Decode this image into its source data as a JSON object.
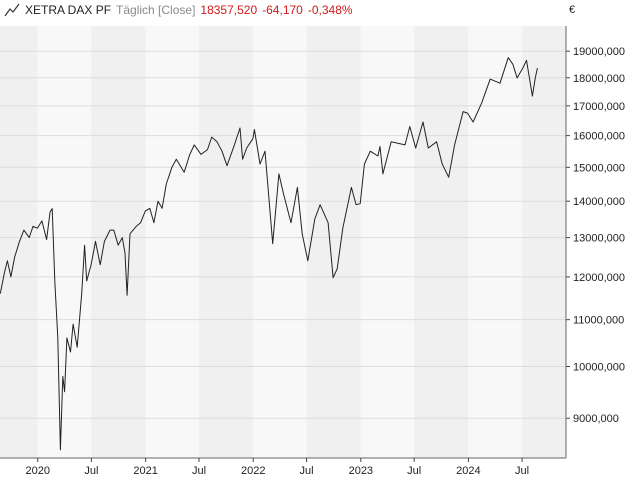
{
  "header": {
    "instrument": "XETRA DAX PF",
    "period": "Täglich [Close]",
    "last": "18357,520",
    "change": "-64,170",
    "change_pct": "-0,348%"
  },
  "colors": {
    "negative": "#d01a1a",
    "band_dark": "#f0f0f0",
    "band_light": "#f8f8f8",
    "line": "#222222",
    "grid": "#dcdcdc"
  },
  "icons": {
    "chart_type": "line-chart-icon"
  },
  "chart_data": {
    "type": "line",
    "title": "",
    "xlabel": "",
    "ylabel": "€",
    "scale": "log",
    "grid": true,
    "legend": "none",
    "ylim": [
      8300,
      20000
    ],
    "xlim": [
      "2019-08-26",
      "2024-11-27"
    ],
    "yticks": [
      {
        "value": 9000,
        "label": "9000,000"
      },
      {
        "value": 10000,
        "label": "10000,000"
      },
      {
        "value": 11000,
        "label": "11000,000"
      },
      {
        "value": 12000,
        "label": "12000,000"
      },
      {
        "value": 13000,
        "label": "13000,000"
      },
      {
        "value": 14000,
        "label": "14000,000"
      },
      {
        "value": 15000,
        "label": "15000,000"
      },
      {
        "value": 16000,
        "label": "16000,000"
      },
      {
        "value": 17000,
        "label": "17000,000"
      },
      {
        "value": 18000,
        "label": "18000,000"
      },
      {
        "value": 19000,
        "label": "19000,000"
      }
    ],
    "xticks": [
      {
        "date": "2020-01-01",
        "label": "2020"
      },
      {
        "date": "2020-07-01",
        "label": "Jul"
      },
      {
        "date": "2021-01-01",
        "label": "2021"
      },
      {
        "date": "2021-07-01",
        "label": "Jul"
      },
      {
        "date": "2022-01-01",
        "label": "2022"
      },
      {
        "date": "2022-07-01",
        "label": "Jul"
      },
      {
        "date": "2023-01-01",
        "label": "2023"
      },
      {
        "date": "2023-07-01",
        "label": "Jul"
      },
      {
        "date": "2024-01-01",
        "label": "2024"
      },
      {
        "date": "2024-07-01",
        "label": "Jul"
      }
    ],
    "series": [
      {
        "points": [
          [
            "2019-08-27",
            11600
          ],
          [
            "2019-09-10",
            12100
          ],
          [
            "2019-09-20",
            12400
          ],
          [
            "2019-10-02",
            12000
          ],
          [
            "2019-10-15",
            12500
          ],
          [
            "2019-10-31",
            12900
          ],
          [
            "2019-11-15",
            13200
          ],
          [
            "2019-12-03",
            13000
          ],
          [
            "2019-12-16",
            13300
          ],
          [
            "2019-12-31",
            13250
          ],
          [
            "2020-01-15",
            13450
          ],
          [
            "2020-01-31",
            12950
          ],
          [
            "2020-02-12",
            13700
          ],
          [
            "2020-02-19",
            13790
          ],
          [
            "2020-02-28",
            11900
          ],
          [
            "2020-03-09",
            10600
          ],
          [
            "2020-03-18",
            8440
          ],
          [
            "2020-03-26",
            9800
          ],
          [
            "2020-04-01",
            9500
          ],
          [
            "2020-04-09",
            10600
          ],
          [
            "2020-04-21",
            10300
          ],
          [
            "2020-04-30",
            10900
          ],
          [
            "2020-05-14",
            10400
          ],
          [
            "2020-05-29",
            11600
          ],
          [
            "2020-06-08",
            12800
          ],
          [
            "2020-06-15",
            11900
          ],
          [
            "2020-06-30",
            12300
          ],
          [
            "2020-07-15",
            12900
          ],
          [
            "2020-07-31",
            12300
          ],
          [
            "2020-08-14",
            12900
          ],
          [
            "2020-09-02",
            13200
          ],
          [
            "2020-09-15",
            13200
          ],
          [
            "2020-09-30",
            12800
          ],
          [
            "2020-10-14",
            13000
          ],
          [
            "2020-10-23",
            12600
          ],
          [
            "2020-10-30",
            11560
          ],
          [
            "2020-11-09",
            13100
          ],
          [
            "2020-11-30",
            13300
          ],
          [
            "2020-12-15",
            13400
          ],
          [
            "2020-12-31",
            13720
          ],
          [
            "2021-01-15",
            13800
          ],
          [
            "2021-01-29",
            13400
          ],
          [
            "2021-02-12",
            14000
          ],
          [
            "2021-02-26",
            13800
          ],
          [
            "2021-03-12",
            14500
          ],
          [
            "2021-03-31",
            15000
          ],
          [
            "2021-04-15",
            15250
          ],
          [
            "2021-05-12",
            14850
          ],
          [
            "2021-05-31",
            15400
          ],
          [
            "2021-06-15",
            15700
          ],
          [
            "2021-07-08",
            15400
          ],
          [
            "2021-07-30",
            15550
          ],
          [
            "2021-08-13",
            15950
          ],
          [
            "2021-08-31",
            15800
          ],
          [
            "2021-09-17",
            15500
          ],
          [
            "2021-10-04",
            15050
          ],
          [
            "2021-10-29",
            15700
          ],
          [
            "2021-11-17",
            16250
          ],
          [
            "2021-11-26",
            15250
          ],
          [
            "2021-12-10",
            15600
          ],
          [
            "2021-12-31",
            15900
          ],
          [
            "2022-01-05",
            16200
          ],
          [
            "2022-01-24",
            15100
          ],
          [
            "2022-02-10",
            15500
          ],
          [
            "2022-03-08",
            12840
          ],
          [
            "2022-03-29",
            14800
          ],
          [
            "2022-04-14",
            14200
          ],
          [
            "2022-05-09",
            13400
          ],
          [
            "2022-05-31",
            14400
          ],
          [
            "2022-06-16",
            13100
          ],
          [
            "2022-07-05",
            12400
          ],
          [
            "2022-07-29",
            13500
          ],
          [
            "2022-08-16",
            13900
          ],
          [
            "2022-09-12",
            13400
          ],
          [
            "2022-09-29",
            11980
          ],
          [
            "2022-10-13",
            12200
          ],
          [
            "2022-11-01",
            13250
          ],
          [
            "2022-11-30",
            14400
          ],
          [
            "2022-12-16",
            13900
          ],
          [
            "2022-12-30",
            13930
          ],
          [
            "2023-01-13",
            15100
          ],
          [
            "2023-02-02",
            15500
          ],
          [
            "2023-02-28",
            15350
          ],
          [
            "2023-03-07",
            15650
          ],
          [
            "2023-03-17",
            14800
          ],
          [
            "2023-04-14",
            15800
          ],
          [
            "2023-05-31",
            15700
          ],
          [
            "2023-06-16",
            16300
          ],
          [
            "2023-07-06",
            15600
          ],
          [
            "2023-07-31",
            16450
          ],
          [
            "2023-08-18",
            15600
          ],
          [
            "2023-09-15",
            15800
          ],
          [
            "2023-10-04",
            15100
          ],
          [
            "2023-10-26",
            14700
          ],
          [
            "2023-11-15",
            15700
          ],
          [
            "2023-12-14",
            16800
          ],
          [
            "2023-12-29",
            16750
          ],
          [
            "2024-01-17",
            16450
          ],
          [
            "2024-02-15",
            17100
          ],
          [
            "2024-03-15",
            17950
          ],
          [
            "2024-04-17",
            17800
          ],
          [
            "2024-05-15",
            18750
          ],
          [
            "2024-05-31",
            18500
          ],
          [
            "2024-06-14",
            17990
          ],
          [
            "2024-07-03",
            18350
          ],
          [
            "2024-07-16",
            18650
          ],
          [
            "2024-08-05",
            17340
          ],
          [
            "2024-08-15",
            18000
          ],
          [
            "2024-08-22",
            18357
          ]
        ]
      }
    ]
  }
}
